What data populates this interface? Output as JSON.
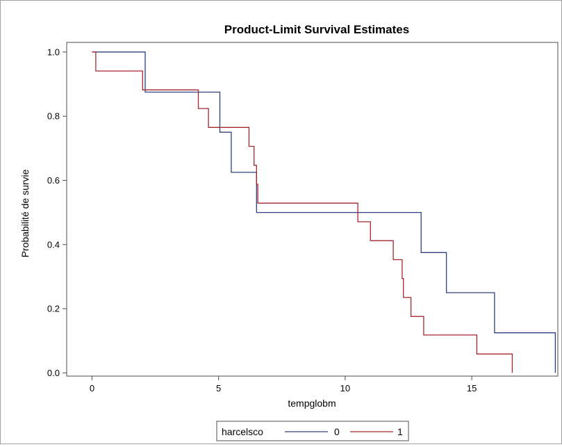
{
  "chart_data": {
    "type": "line",
    "step": true,
    "title": "Product-Limit Survival Estimates",
    "xlabel": "tempglobm",
    "ylabel": "Probabilité de survie",
    "xlim": [
      -1.0,
      18.4
    ],
    "ylim": [
      -0.01,
      1.03
    ],
    "x_ticks": [
      0,
      5,
      10,
      15
    ],
    "y_ticks": [
      0.0,
      0.2,
      0.4,
      0.6,
      0.8,
      1.0
    ],
    "x_tick_labels": [
      "0",
      "5",
      "10",
      "15"
    ],
    "y_tick_labels": [
      "0.0",
      "0.2",
      "0.4",
      "0.6",
      "0.8",
      "1.0"
    ],
    "grid": false,
    "legend": {
      "title": "harcelsco",
      "position": "bottom-center"
    },
    "series": [
      {
        "name": "0",
        "color": "#2e3f7f",
        "x": [
          0.0,
          2.1,
          5.05,
          5.5,
          6.5,
          13.0,
          14.0,
          15.9,
          18.3
        ],
        "y": [
          1.0,
          0.875,
          0.75,
          0.625,
          0.5,
          0.375,
          0.25,
          0.125,
          0.0
        ]
      },
      {
        "name": "1",
        "color": "#a4262c",
        "x": [
          0.0,
          0.15,
          2.0,
          4.2,
          4.6,
          6.2,
          6.4,
          6.5,
          6.55,
          10.5,
          11.0,
          11.9,
          12.25,
          12.3,
          12.6,
          13.1,
          15.2,
          16.6
        ],
        "y": [
          1.0,
          0.941,
          0.882,
          0.824,
          0.765,
          0.706,
          0.647,
          0.588,
          0.529,
          0.471,
          0.412,
          0.353,
          0.294,
          0.235,
          0.176,
          0.118,
          0.059,
          0.0
        ]
      }
    ]
  }
}
